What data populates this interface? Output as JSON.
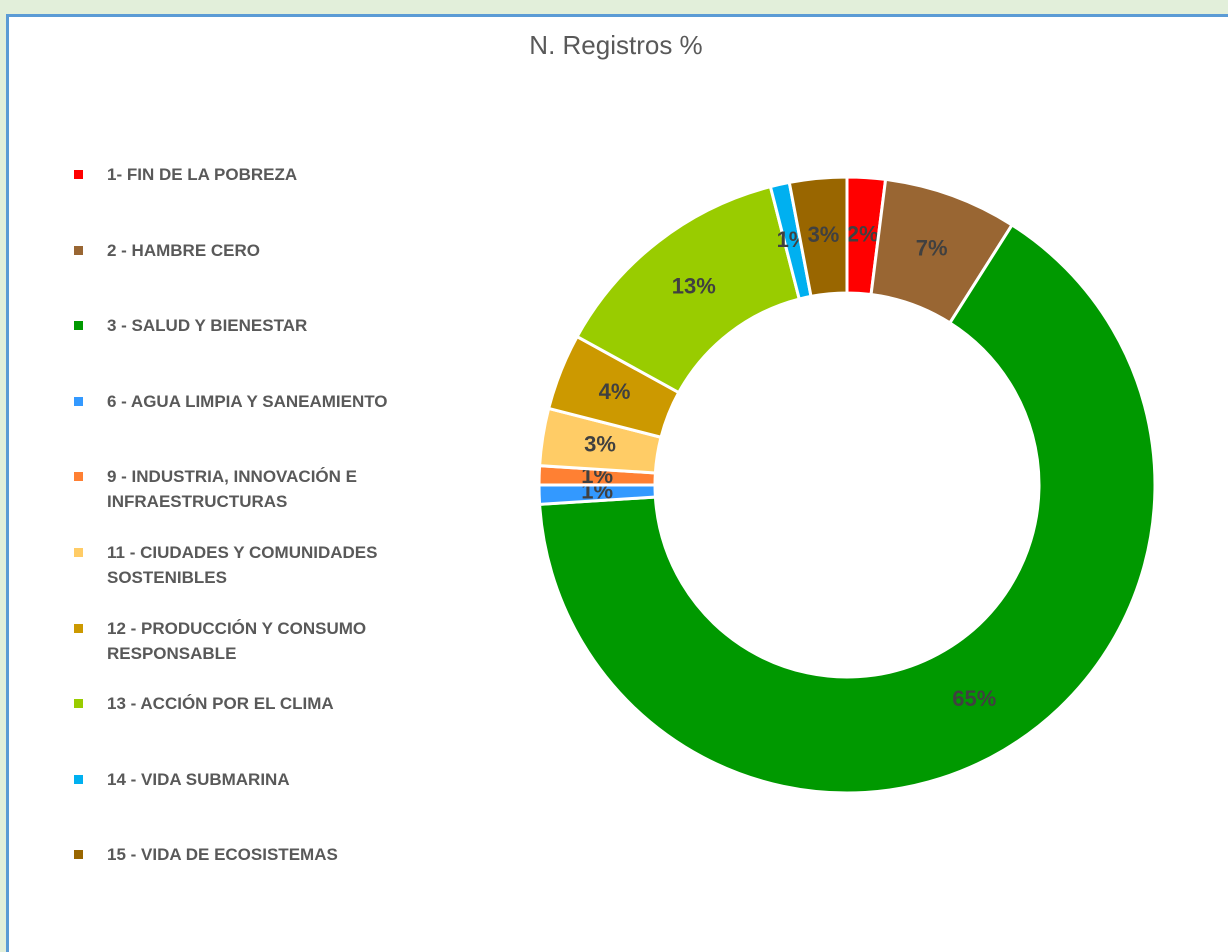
{
  "chart_data": {
    "type": "pie",
    "title": "N. Registros %",
    "donut": true,
    "legend": "left",
    "categories": [
      "1- FIN DE LA POBREZA",
      "2 - HAMBRE CERO",
      "3 - SALUD Y BIENESTAR",
      "6 - AGUA LIMPIA Y SANEAMIENTO",
      "9 - INDUSTRIA, INNOVACIÓN E INFRAESTRUCTURAS",
      "11 - CIUDADES Y COMUNIDADES SOSTENIBLES",
      "12 - PRODUCCIÓN Y CONSUMO RESPONSABLE",
      "13 - ACCIÓN POR EL CLIMA",
      "14 - VIDA SUBMARINA",
      "15 - VIDA DE ECOSISTEMAS"
    ],
    "values": [
      2,
      7,
      65,
      1,
      1,
      3,
      4,
      13,
      1,
      3
    ],
    "value_labels": [
      "2%",
      "7%",
      "65%",
      "1%",
      "1%",
      "3%",
      "4%",
      "13%",
      "1%",
      "3%"
    ],
    "colors": [
      "#ff0000",
      "#996633",
      "#009900",
      "#3399ff",
      "#ff8033",
      "#ffcc66",
      "#cc9900",
      "#99cc00",
      "#00b0f0",
      "#996600"
    ]
  }
}
